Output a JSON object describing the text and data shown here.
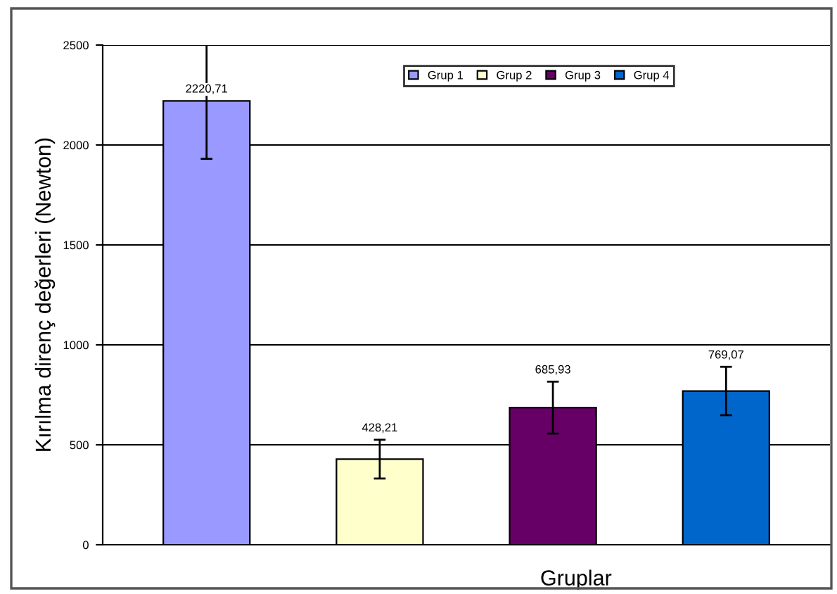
{
  "chart_data": {
    "type": "bar",
    "ylabel": "Kırılma direnç değerleri (Newton)",
    "xlabel": "Gruplar",
    "categories": [
      null,
      null,
      null,
      null
    ],
    "series": [
      {
        "name": "Grup 1",
        "color": "#9999ff",
        "values": [
          2220.71,
          null,
          null,
          null
        ],
        "value_labels": [
          "2220,71",
          null,
          null,
          null
        ],
        "errors": [
          290,
          null,
          null,
          null
        ]
      },
      {
        "name": "Grup 2",
        "color": "#ffffcc",
        "values": [
          null,
          428.21,
          null,
          null
        ],
        "value_labels": [
          null,
          "428,21",
          null,
          null
        ],
        "errors": [
          null,
          97,
          null,
          null
        ]
      },
      {
        "name": "Grup 3",
        "color": "#660066",
        "values": [
          null,
          null,
          685.93,
          null
        ],
        "value_labels": [
          null,
          null,
          "685,93",
          null
        ],
        "errors": [
          null,
          null,
          130,
          null
        ]
      },
      {
        "name": "Grup 4",
        "color": "#0066cc",
        "values": [
          null,
          null,
          null,
          769.07
        ],
        "value_labels": [
          null,
          null,
          null,
          "769,07"
        ],
        "errors": [
          null,
          null,
          null,
          121
        ]
      }
    ],
    "ylim": [
      0,
      2500
    ],
    "yticks": [
      0,
      500,
      1000,
      1500,
      2000,
      2500
    ],
    "grid": "y",
    "legend": "top"
  }
}
